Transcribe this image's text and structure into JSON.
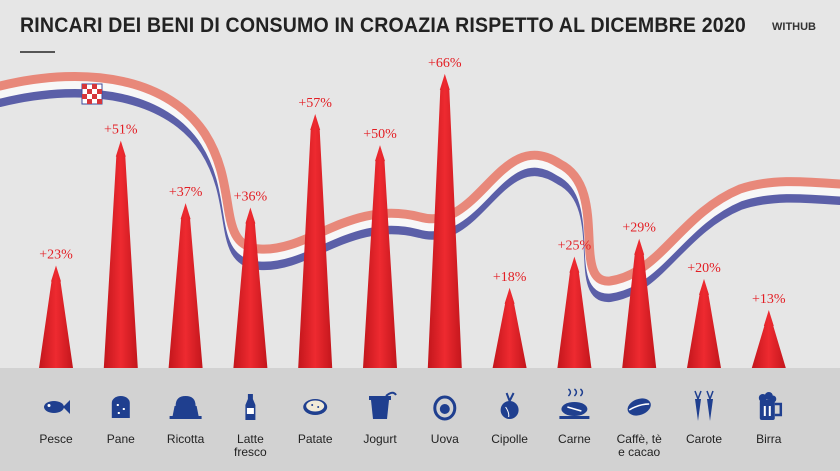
{
  "header": {
    "title": "RINCARI DEI BENI DI CONSUMO IN CROAZIA RISPETTO AL DICEMBRE 2020",
    "brand": "WITHUB"
  },
  "colors": {
    "arrow": "#e31e24",
    "label": "#e31e24",
    "icon": "#1f3f8f",
    "ribbon_red": "#e8887a",
    "ribbon_white": "#f7f7f7",
    "ribbon_blue": "#5b5fa8",
    "background": "#e6e6e6",
    "icon_band": "#d2d2d2"
  },
  "chart_data": {
    "type": "bar",
    "title": "RINCARI DEI BENI DI CONSUMO IN CROAZIA RISPETTO AL DICEMBRE 2020",
    "categories": [
      "Pesce",
      "Pane",
      "Ricotta",
      "Latte fresco",
      "Patate",
      "Jogurt",
      "Uova",
      "Cipolle",
      "Carne",
      "Caffè, tè e cacao",
      "Carote",
      "Birra"
    ],
    "category_lines": [
      [
        "Pesce"
      ],
      [
        "Pane"
      ],
      [
        "Ricotta"
      ],
      [
        "Latte",
        "fresco"
      ],
      [
        "Patate"
      ],
      [
        "Jogurt"
      ],
      [
        "Uova"
      ],
      [
        "Cipolle"
      ],
      [
        "Carne"
      ],
      [
        "Caffè, tè",
        "e cacao"
      ],
      [
        "Carote"
      ],
      [
        "Birra"
      ]
    ],
    "values": [
      23,
      51,
      37,
      36,
      57,
      50,
      66,
      18,
      25,
      29,
      20,
      13
    ],
    "value_labels": [
      "+23%",
      "+51%",
      "+37%",
      "+36%",
      "+57%",
      "+50%",
      "+66%",
      "+18%",
      "+25%",
      "+29%",
      "+20%",
      "+13%"
    ],
    "icons": [
      "fish-icon",
      "bread-icon",
      "cake-icon",
      "milk-bottle-icon",
      "potato-icon",
      "yogurt-icon",
      "egg-icon",
      "onion-icon",
      "meat-icon",
      "coffee-bean-icon",
      "carrot-icon",
      "beer-mug-icon"
    ],
    "unit": "%",
    "ylim": [
      0,
      70
    ],
    "grid": false,
    "legend": "none"
  }
}
